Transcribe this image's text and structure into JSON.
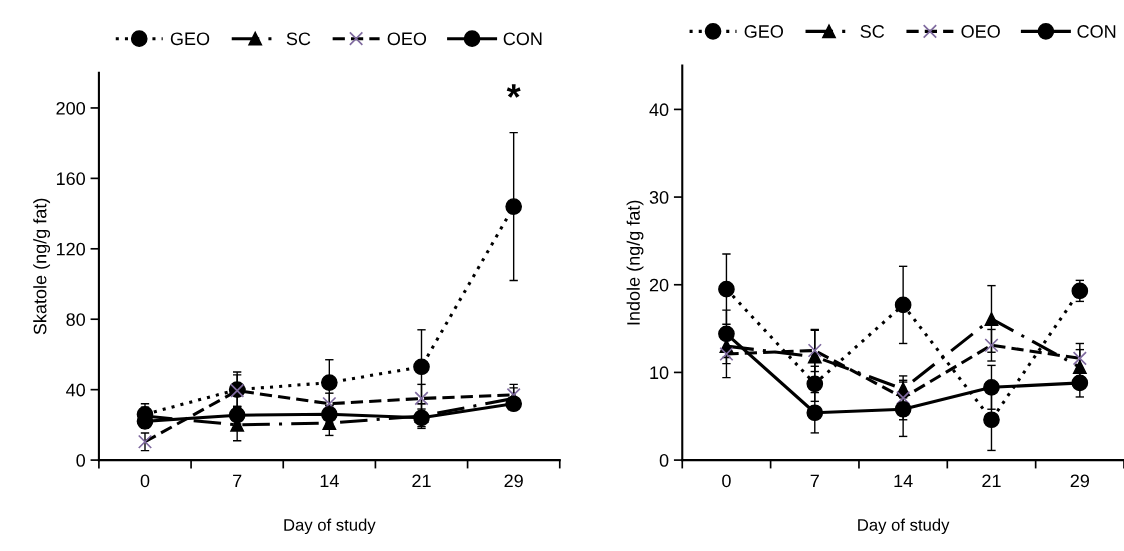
{
  "chart_data": [
    {
      "type": "line",
      "categories": [
        "0",
        "7",
        "14",
        "21",
        "29"
      ],
      "xlabel": "Day of study",
      "ylabel": "Skatole (ng/g fat)",
      "ylim": [
        0,
        220
      ],
      "yticks": [
        0,
        40,
        80,
        120,
        160,
        200
      ],
      "legend": "top",
      "grid": false,
      "annotations": [
        "*"
      ],
      "series": [
        {
          "name": "GEO",
          "color": "#000000",
          "marker": "circle",
          "line_style": "dotted",
          "values": [
            26,
            40,
            44,
            53,
            144
          ],
          "errors": [
            6,
            10,
            13,
            21,
            42
          ]
        },
        {
          "name": "SC",
          "color": "#000000",
          "marker": "triangle",
          "line_style": "dashdot",
          "values": [
            25,
            20,
            21,
            25,
            35
          ],
          "errors": [
            5,
            9,
            7,
            7,
            6
          ]
        },
        {
          "name": "OEO",
          "color": "#000000",
          "colors": [
            "#7f6a9f",
            "#7f6a9f",
            "#7f6a9f",
            "#7f6a9f",
            "#7f6a9f"
          ],
          "marker": "cross",
          "line_style": "dashed",
          "values": [
            10.4,
            39.4,
            32,
            35,
            37
          ],
          "errors": [
            5,
            9,
            6,
            8,
            6
          ]
        },
        {
          "name": "CON",
          "color": "#000000",
          "marker": "circle",
          "line_style": "solid",
          "values": [
            22,
            25.5,
            26,
            24,
            32
          ],
          "errors": [
            4,
            5,
            5,
            5,
            3
          ]
        }
      ]
    },
    {
      "type": "line",
      "categories": [
        "0",
        "7",
        "14",
        "21",
        "29"
      ],
      "xlabel": "Day of study",
      "ylabel": "Indole (ng/g fat)",
      "ylim": [
        0,
        45
      ],
      "yticks": [
        0,
        10,
        20,
        30,
        40
      ],
      "legend": "top",
      "grid": false,
      "series": [
        {
          "name": "GEO",
          "color": "#000000",
          "marker": "circle",
          "line_style": "dotted",
          "values": [
            19.5,
            8.7,
            17.7,
            4.6,
            19.3
          ],
          "errors": [
            4,
            2,
            4.4,
            3.5,
            1.2
          ]
        },
        {
          "name": "SC",
          "color": "#000000",
          "marker": "triangle",
          "line_style": "dashdot",
          "values": [
            13,
            11.8,
            8.1,
            16.1,
            10.6
          ],
          "errors": [
            2,
            3,
            1,
            3.8,
            2
          ]
        },
        {
          "name": "OEO",
          "color": "#000000",
          "colors": [
            "#7f6a9f",
            "#7f6a9f",
            "#7f6a9f",
            "#7f6a9f",
            "#7f6a9f"
          ],
          "marker": "cross",
          "line_style": "dashed",
          "values": [
            12.1,
            12.5,
            7.1,
            13.1,
            11.6
          ],
          "errors": [
            2.7,
            2.4,
            2.5,
            1.8,
            1.7
          ]
        },
        {
          "name": "CON",
          "color": "#000000",
          "marker": "circle",
          "line_style": "solid",
          "values": [
            14.4,
            5.4,
            5.8,
            8.3,
            8.8
          ],
          "errors": [
            2.7,
            2.3,
            3.1,
            2.5,
            1.6
          ]
        }
      ]
    }
  ]
}
